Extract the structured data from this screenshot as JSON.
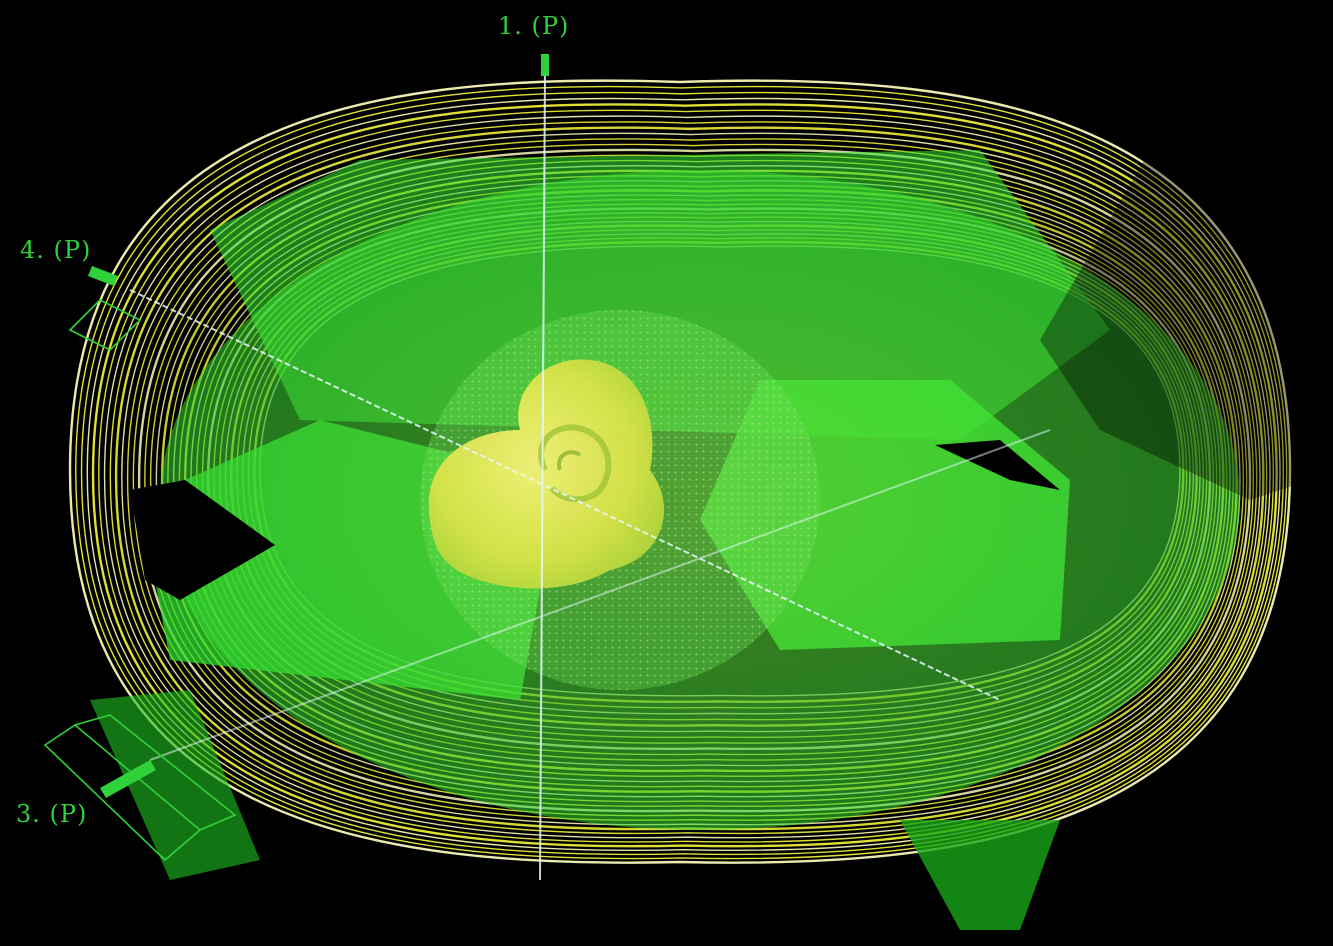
{
  "beams": [
    {
      "id": "beam-1",
      "label": "1. (P)"
    },
    {
      "id": "beam-4",
      "label": "4. (P)"
    },
    {
      "id": "beam-3",
      "label": "3. (P)"
    }
  ],
  "colors": {
    "background": "#000000",
    "contour": "#f2f23a",
    "contour_pale": "#f7f7b8",
    "beam_field": "#35e635",
    "beam_field_dark": "#17a617",
    "beam_axis": "#e8f8ff",
    "label": "#2fd23a",
    "target": "#e5e84a"
  }
}
